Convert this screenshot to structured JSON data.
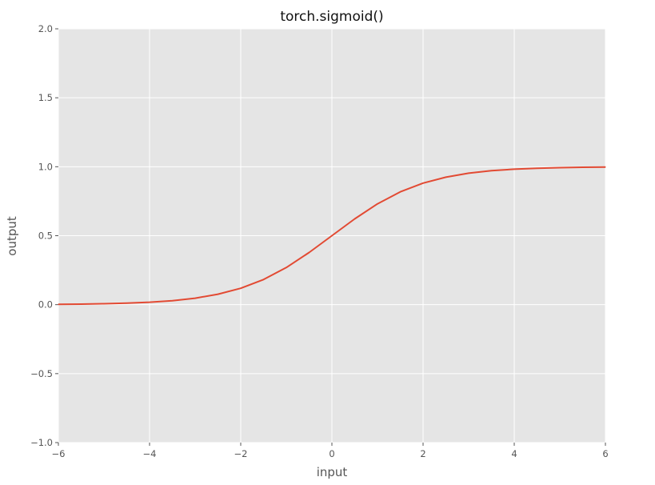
{
  "chart_data": {
    "type": "line",
    "title": "torch.sigmoid()",
    "xlabel": "input",
    "ylabel": "output",
    "xlim": [
      -6,
      6
    ],
    "ylim": [
      -1.0,
      2.0
    ],
    "x_ticks": [
      -6,
      -4,
      -2,
      0,
      2,
      4,
      6
    ],
    "x_tick_labels": [
      "−6",
      "−4",
      "−2",
      "0",
      "2",
      "4",
      "6"
    ],
    "y_ticks": [
      -1.0,
      -0.5,
      0.0,
      0.5,
      1.0,
      1.5,
      2.0
    ],
    "y_tick_labels": [
      "−1.0",
      "−0.5",
      "0.0",
      "0.5",
      "1.0",
      "1.5",
      "2.0"
    ],
    "grid": true,
    "series": [
      {
        "color": "#e24a33",
        "x": [
          -6,
          -5.5,
          -5,
          -4.5,
          -4,
          -3.5,
          -3,
          -2.5,
          -2,
          -1.5,
          -1,
          -0.5,
          0,
          0.5,
          1,
          1.5,
          2,
          2.5,
          3,
          3.5,
          4,
          4.5,
          5,
          5.5,
          6
        ],
        "y": [
          0.0025,
          0.0041,
          0.0067,
          0.011,
          0.018,
          0.029,
          0.047,
          0.076,
          0.119,
          0.182,
          0.269,
          0.378,
          0.5,
          0.622,
          0.731,
          0.818,
          0.881,
          0.924,
          0.953,
          0.971,
          0.982,
          0.989,
          0.993,
          0.996,
          0.9975
        ]
      }
    ]
  },
  "colors": {
    "plot_background": "#e5e5e5",
    "grid": "#ffffff",
    "line": "#e24a33"
  }
}
